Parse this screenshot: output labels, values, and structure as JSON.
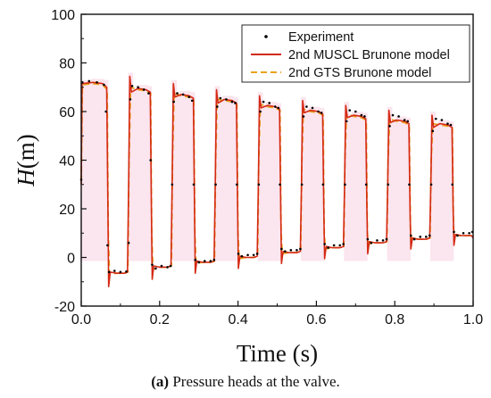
{
  "chart_data": {
    "type": "line",
    "title": "",
    "xlabel": "Time (s)",
    "ylabel_italic": "H",
    "ylabel_unit": "(m)",
    "xlim": [
      0.0,
      1.0
    ],
    "ylim": [
      -20,
      100
    ],
    "xticks": [
      "0.0",
      "0.2",
      "0.4",
      "0.6",
      "0.8",
      "1.0"
    ],
    "yticks": [
      "-20",
      "0",
      "20",
      "40",
      "60",
      "80",
      "100"
    ],
    "legend_position": "top-right",
    "grid": false,
    "series": [
      {
        "name": "Experiment",
        "style": "dots",
        "color": "#000000",
        "points": [
          [
            0.0,
            32
          ],
          [
            0.003,
            72
          ],
          [
            0.02,
            72.5
          ],
          [
            0.04,
            72
          ],
          [
            0.058,
            71
          ],
          [
            0.063,
            60
          ],
          [
            0.067,
            5
          ],
          [
            0.071,
            -6
          ],
          [
            0.085,
            -5.5
          ],
          [
            0.1,
            -6
          ],
          [
            0.115,
            -5.8
          ],
          [
            0.121,
            6
          ],
          [
            0.125,
            65
          ],
          [
            0.13,
            70.5
          ],
          [
            0.145,
            70
          ],
          [
            0.16,
            69
          ],
          [
            0.172,
            67.5
          ],
          [
            0.177,
            40
          ],
          [
            0.181,
            -3
          ],
          [
            0.19,
            -4.5
          ],
          [
            0.205,
            -3.5
          ],
          [
            0.22,
            -4
          ],
          [
            0.228,
            -3.5
          ],
          [
            0.232,
            30
          ],
          [
            0.236,
            64
          ],
          [
            0.245,
            67.5
          ],
          [
            0.26,
            67
          ],
          [
            0.275,
            66
          ],
          [
            0.283,
            64.5
          ],
          [
            0.287,
            30
          ],
          [
            0.291,
            -1
          ],
          [
            0.3,
            -2
          ],
          [
            0.315,
            -1.5
          ],
          [
            0.33,
            -1.5
          ],
          [
            0.339,
            -1
          ],
          [
            0.343,
            30
          ],
          [
            0.347,
            62
          ],
          [
            0.355,
            65.5
          ],
          [
            0.37,
            65
          ],
          [
            0.385,
            64
          ],
          [
            0.393,
            63.5
          ],
          [
            0.397,
            30
          ],
          [
            0.401,
            1.5
          ],
          [
            0.41,
            0.5
          ],
          [
            0.425,
            1
          ],
          [
            0.44,
            1
          ],
          [
            0.449,
            1.5
          ],
          [
            0.453,
            30
          ],
          [
            0.457,
            60
          ],
          [
            0.465,
            64
          ],
          [
            0.48,
            63.5
          ],
          [
            0.495,
            62
          ],
          [
            0.503,
            61.5
          ],
          [
            0.507,
            30
          ],
          [
            0.511,
            3.5
          ],
          [
            0.52,
            2.5
          ],
          [
            0.535,
            3
          ],
          [
            0.55,
            3
          ],
          [
            0.559,
            3.5
          ],
          [
            0.563,
            30
          ],
          [
            0.567,
            58
          ],
          [
            0.575,
            62
          ],
          [
            0.59,
            61.5
          ],
          [
            0.605,
            60
          ],
          [
            0.613,
            59.5
          ],
          [
            0.617,
            30
          ],
          [
            0.621,
            5.5
          ],
          [
            0.63,
            4
          ],
          [
            0.645,
            5
          ],
          [
            0.66,
            5
          ],
          [
            0.669,
            5.5
          ],
          [
            0.673,
            30
          ],
          [
            0.677,
            56
          ],
          [
            0.685,
            60.5
          ],
          [
            0.7,
            60
          ],
          [
            0.715,
            58.5
          ],
          [
            0.723,
            58
          ],
          [
            0.727,
            30
          ],
          [
            0.731,
            7.5
          ],
          [
            0.74,
            6
          ],
          [
            0.755,
            7
          ],
          [
            0.77,
            7
          ],
          [
            0.779,
            7.5
          ],
          [
            0.783,
            30
          ],
          [
            0.787,
            54
          ],
          [
            0.795,
            58.5
          ],
          [
            0.81,
            58
          ],
          [
            0.825,
            56.5
          ],
          [
            0.833,
            56
          ],
          [
            0.837,
            30
          ],
          [
            0.841,
            9
          ],
          [
            0.85,
            7.5
          ],
          [
            0.865,
            8.5
          ],
          [
            0.88,
            8.5
          ],
          [
            0.889,
            9
          ],
          [
            0.893,
            30
          ],
          [
            0.897,
            52
          ],
          [
            0.905,
            57
          ],
          [
            0.92,
            56.5
          ],
          [
            0.935,
            55
          ],
          [
            0.943,
            54.5
          ],
          [
            0.947,
            30
          ],
          [
            0.951,
            10.5
          ],
          [
            0.96,
            9
          ],
          [
            0.975,
            10
          ],
          [
            0.99,
            10
          ],
          [
            0.998,
            10.5
          ]
        ]
      },
      {
        "name": "2nd MUSCL Brunone model",
        "style": "solid",
        "color": "#d42a14",
        "points": [
          [
            0.0,
            30
          ],
          [
            0.002,
            71.5
          ],
          [
            0.03,
            72
          ],
          [
            0.055,
            71.5
          ],
          [
            0.065,
            70
          ],
          [
            0.068,
            20
          ],
          [
            0.07,
            -12
          ],
          [
            0.074,
            -6
          ],
          [
            0.09,
            -6.5
          ],
          [
            0.11,
            -6.5
          ],
          [
            0.118,
            -6
          ],
          [
            0.121,
            30
          ],
          [
            0.124,
            74.5
          ],
          [
            0.128,
            68
          ],
          [
            0.145,
            69.5
          ],
          [
            0.165,
            69
          ],
          [
            0.176,
            68
          ],
          [
            0.179,
            20
          ],
          [
            0.181,
            -9
          ],
          [
            0.185,
            -3.5
          ],
          [
            0.2,
            -4
          ],
          [
            0.22,
            -4
          ],
          [
            0.229,
            -3.5
          ],
          [
            0.232,
            30
          ],
          [
            0.235,
            71.5
          ],
          [
            0.239,
            66
          ],
          [
            0.255,
            67
          ],
          [
            0.275,
            66.5
          ],
          [
            0.286,
            65.5
          ],
          [
            0.289,
            20
          ],
          [
            0.291,
            -6.5
          ],
          [
            0.295,
            -1.5
          ],
          [
            0.31,
            -2
          ],
          [
            0.33,
            -2
          ],
          [
            0.339,
            -1.5
          ],
          [
            0.342,
            30
          ],
          [
            0.345,
            69
          ],
          [
            0.349,
            63.5
          ],
          [
            0.365,
            65
          ],
          [
            0.385,
            64.5
          ],
          [
            0.396,
            63.5
          ],
          [
            0.399,
            20
          ],
          [
            0.401,
            -4.5
          ],
          [
            0.405,
            0.5
          ],
          [
            0.42,
            0
          ],
          [
            0.44,
            0
          ],
          [
            0.449,
            0.5
          ],
          [
            0.452,
            30
          ],
          [
            0.455,
            66.5
          ],
          [
            0.459,
            61.5
          ],
          [
            0.475,
            62.5
          ],
          [
            0.495,
            62
          ],
          [
            0.506,
            61
          ],
          [
            0.509,
            20
          ],
          [
            0.511,
            -2.5
          ],
          [
            0.515,
            2.5
          ],
          [
            0.53,
            2
          ],
          [
            0.55,
            2
          ],
          [
            0.559,
            2.5
          ],
          [
            0.562,
            30
          ],
          [
            0.565,
            64.5
          ],
          [
            0.569,
            59.5
          ],
          [
            0.585,
            60.5
          ],
          [
            0.605,
            60
          ],
          [
            0.616,
            59
          ],
          [
            0.619,
            20
          ],
          [
            0.621,
            -0.5
          ],
          [
            0.625,
            4.5
          ],
          [
            0.64,
            4
          ],
          [
            0.66,
            4
          ],
          [
            0.669,
            4.5
          ],
          [
            0.672,
            30
          ],
          [
            0.675,
            62.5
          ],
          [
            0.679,
            57.5
          ],
          [
            0.695,
            58.5
          ],
          [
            0.715,
            58
          ],
          [
            0.726,
            57
          ],
          [
            0.729,
            20
          ],
          [
            0.731,
            1.5
          ],
          [
            0.735,
            6.5
          ],
          [
            0.75,
            6
          ],
          [
            0.77,
            6
          ],
          [
            0.779,
            6.5
          ],
          [
            0.782,
            30
          ],
          [
            0.785,
            60.5
          ],
          [
            0.789,
            55.5
          ],
          [
            0.805,
            56.5
          ],
          [
            0.825,
            56
          ],
          [
            0.836,
            55
          ],
          [
            0.839,
            20
          ],
          [
            0.841,
            3.5
          ],
          [
            0.845,
            8
          ],
          [
            0.86,
            7.5
          ],
          [
            0.88,
            7.5
          ],
          [
            0.889,
            8
          ],
          [
            0.892,
            30
          ],
          [
            0.895,
            58.5
          ],
          [
            0.899,
            53.5
          ],
          [
            0.915,
            55
          ],
          [
            0.935,
            54.5
          ],
          [
            0.946,
            53.5
          ],
          [
            0.949,
            20
          ],
          [
            0.951,
            5
          ],
          [
            0.955,
            9.5
          ],
          [
            0.97,
            9
          ],
          [
            0.99,
            9
          ],
          [
            0.996,
            9
          ],
          [
            1.0,
            8
          ]
        ]
      },
      {
        "name": "2nd GTS Brunone model",
        "style": "dashed",
        "color": "#e8a21a",
        "points": [
          [
            0.0,
            31
          ],
          [
            0.003,
            71
          ],
          [
            0.03,
            71.5
          ],
          [
            0.055,
            71
          ],
          [
            0.066,
            69
          ],
          [
            0.069,
            10
          ],
          [
            0.072,
            -7
          ],
          [
            0.09,
            -6.5
          ],
          [
            0.11,
            -6.5
          ],
          [
            0.119,
            -6
          ],
          [
            0.122,
            40
          ],
          [
            0.126,
            70
          ],
          [
            0.145,
            69
          ],
          [
            0.165,
            68.5
          ],
          [
            0.177,
            67.5
          ],
          [
            0.18,
            10
          ],
          [
            0.183,
            -5
          ],
          [
            0.2,
            -4
          ],
          [
            0.22,
            -4
          ],
          [
            0.23,
            -3.5
          ],
          [
            0.233,
            40
          ],
          [
            0.237,
            67.5
          ],
          [
            0.255,
            66.5
          ],
          [
            0.275,
            66
          ],
          [
            0.287,
            65
          ],
          [
            0.29,
            10
          ],
          [
            0.293,
            -2.5
          ],
          [
            0.31,
            -2
          ],
          [
            0.33,
            -2
          ],
          [
            0.34,
            -1.5
          ],
          [
            0.343,
            40
          ],
          [
            0.347,
            65
          ],
          [
            0.365,
            64.5
          ],
          [
            0.385,
            64
          ],
          [
            0.397,
            63
          ],
          [
            0.4,
            10
          ],
          [
            0.403,
            -0.5
          ],
          [
            0.42,
            0
          ],
          [
            0.44,
            0
          ],
          [
            0.45,
            0.5
          ],
          [
            0.453,
            40
          ],
          [
            0.457,
            63
          ],
          [
            0.475,
            62
          ],
          [
            0.495,
            61.5
          ],
          [
            0.507,
            60.5
          ],
          [
            0.51,
            10
          ],
          [
            0.513,
            1.5
          ],
          [
            0.53,
            2
          ],
          [
            0.55,
            2
          ],
          [
            0.56,
            2.5
          ],
          [
            0.563,
            40
          ],
          [
            0.567,
            61
          ],
          [
            0.585,
            60
          ],
          [
            0.605,
            59.5
          ],
          [
            0.617,
            58.5
          ],
          [
            0.62,
            10
          ],
          [
            0.623,
            3.5
          ],
          [
            0.64,
            4
          ],
          [
            0.66,
            4
          ],
          [
            0.67,
            4.5
          ],
          [
            0.673,
            40
          ],
          [
            0.677,
            59
          ],
          [
            0.695,
            58
          ],
          [
            0.715,
            57.5
          ],
          [
            0.727,
            56.5
          ],
          [
            0.73,
            10
          ],
          [
            0.733,
            5.5
          ],
          [
            0.75,
            6
          ],
          [
            0.77,
            6
          ],
          [
            0.78,
            6.5
          ],
          [
            0.783,
            40
          ],
          [
            0.787,
            57
          ],
          [
            0.805,
            56
          ],
          [
            0.825,
            55.5
          ],
          [
            0.837,
            54.5
          ],
          [
            0.84,
            12
          ],
          [
            0.843,
            7.5
          ],
          [
            0.86,
            7.5
          ],
          [
            0.88,
            7.5
          ],
          [
            0.89,
            8
          ],
          [
            0.893,
            40
          ],
          [
            0.897,
            55
          ],
          [
            0.915,
            54.5
          ],
          [
            0.935,
            54
          ],
          [
            0.947,
            53
          ],
          [
            0.95,
            12
          ],
          [
            0.953,
            9
          ],
          [
            0.97,
            9
          ],
          [
            0.99,
            9
          ],
          [
            0.998,
            9
          ]
        ]
      }
    ]
  },
  "caption": {
    "label": "(a)",
    "text": " Pressure heads at the valve."
  }
}
